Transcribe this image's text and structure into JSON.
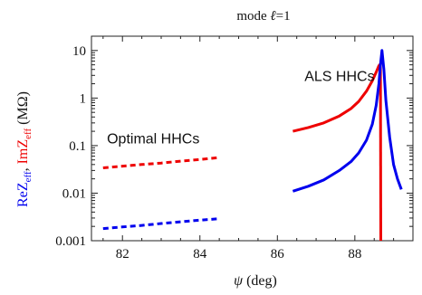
{
  "chart_data": {
    "type": "line",
    "title_prefix": "mode ",
    "title_symbol": "ℓ",
    "title_suffix": "=1",
    "xlabel_symbol": "ψ",
    "xlabel_unit": " (deg)",
    "ylabel": {
      "re_main": "ReZ",
      "re_sub": "eff",
      "separator": ", ",
      "im_main": "ImZ",
      "im_sub": "eff",
      "unit": "  (MΩ)"
    },
    "x_scale": "linear",
    "y_scale": "log",
    "xlim": [
      81.2,
      89.5
    ],
    "ylim": [
      0.001,
      20
    ],
    "x_ticks": [
      82,
      84,
      86,
      88
    ],
    "x_tick_labels": [
      "82",
      "84",
      "86",
      "88"
    ],
    "y_ticks": [
      0.001,
      0.01,
      0.1,
      1,
      10
    ],
    "y_tick_labels": [
      "0.001",
      "0.01",
      "0.1",
      "1",
      "10"
    ],
    "grid": false,
    "colors": {
      "re": "#0000ee",
      "im": "#ee0000",
      "text": "#111111",
      "frame": "#222222"
    },
    "annotations": [
      {
        "text": "Optimal HHCs",
        "x": 81.6,
        "y": 0.11
      },
      {
        "text": "ALS HHCs",
        "x": 86.7,
        "y": 2.3
      }
    ],
    "series": [
      {
        "id": "optimal-im",
        "color": "re_unused",
        "stroke": "#ee0000",
        "dashed": true,
        "x": [
          81.5,
          82.0,
          82.5,
          83.0,
          83.5,
          84.0,
          84.5
        ],
        "y": [
          0.034,
          0.037,
          0.04,
          0.043,
          0.047,
          0.051,
          0.056
        ]
      },
      {
        "id": "optimal-re",
        "stroke": "#0000ee",
        "dashed": true,
        "x": [
          81.5,
          82.0,
          82.5,
          83.0,
          83.5,
          84.0,
          84.5
        ],
        "y": [
          0.0018,
          0.00195,
          0.0021,
          0.0023,
          0.0025,
          0.0027,
          0.0029
        ]
      },
      {
        "id": "als-im",
        "stroke": "#ee0000",
        "dashed": false,
        "x": [
          86.4,
          86.8,
          87.2,
          87.6,
          87.9,
          88.1,
          88.3,
          88.45,
          88.55,
          88.62,
          88.66
        ],
        "y": [
          0.2,
          0.24,
          0.3,
          0.42,
          0.6,
          0.85,
          1.4,
          2.3,
          3.5,
          4.8,
          5.2
        ]
      },
      {
        "id": "als-im-drop",
        "stroke": "#ee0000",
        "dashed": false,
        "x": [
          88.66,
          88.67
        ],
        "y": [
          5.2,
          0.001
        ]
      },
      {
        "id": "als-re",
        "stroke": "#0000ee",
        "dashed": false,
        "x": [
          86.4,
          86.8,
          87.2,
          87.6,
          87.9,
          88.1,
          88.3,
          88.45,
          88.55,
          88.62,
          88.66,
          88.7,
          88.75,
          88.8,
          88.9,
          89.0,
          89.1,
          89.2
        ],
        "y": [
          0.011,
          0.014,
          0.019,
          0.03,
          0.046,
          0.07,
          0.13,
          0.28,
          0.7,
          2.0,
          5.0,
          10.0,
          4.0,
          0.9,
          0.15,
          0.04,
          0.02,
          0.012
        ]
      }
    ]
  }
}
